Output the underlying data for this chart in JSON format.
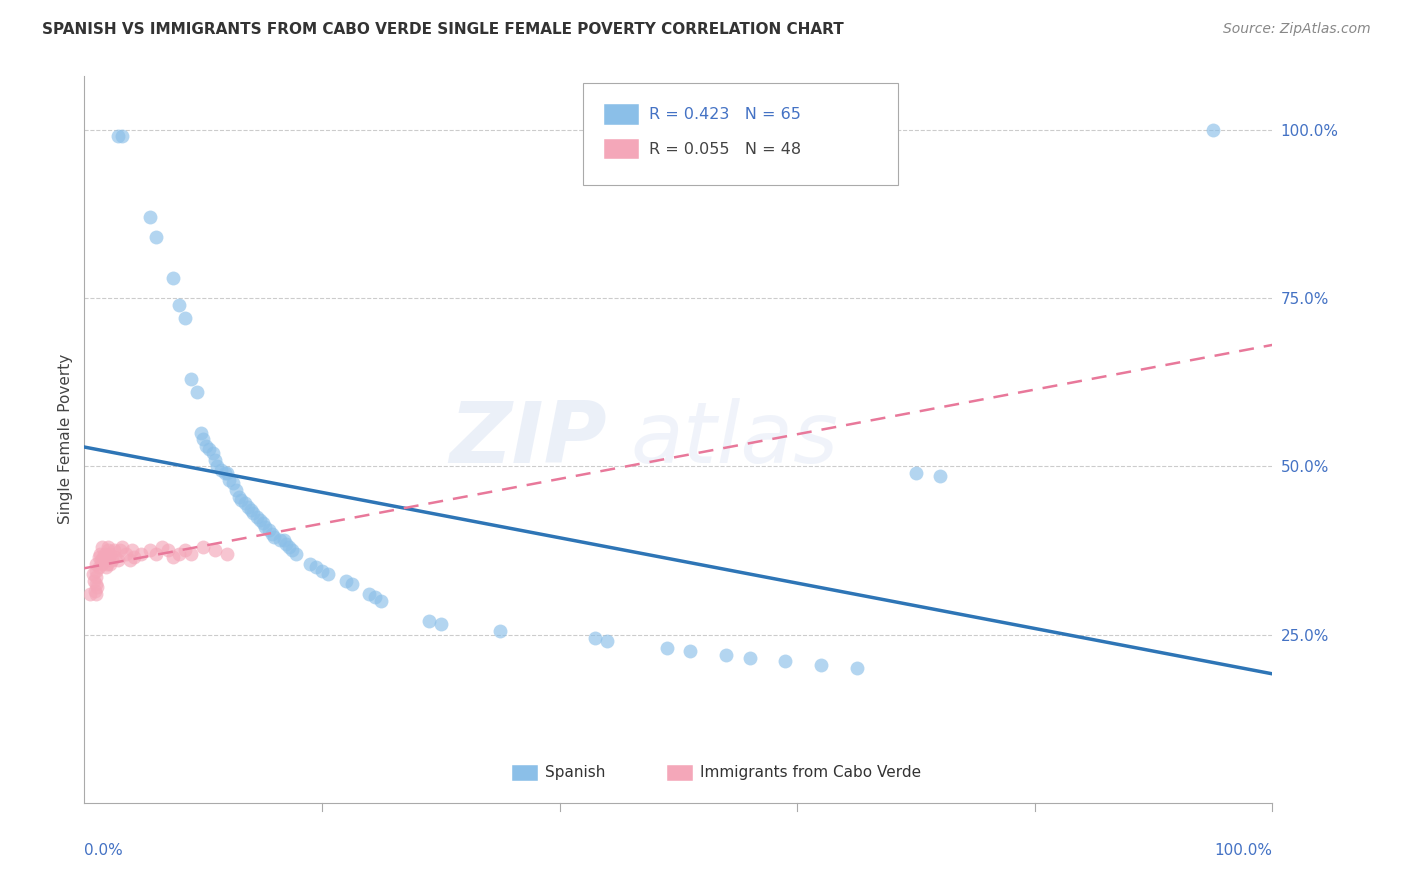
{
  "title": "SPANISH VS IMMIGRANTS FROM CABO VERDE SINGLE FEMALE POVERTY CORRELATION CHART",
  "source": "Source: ZipAtlas.com",
  "ylabel": "Single Female Poverty",
  "r_spanish": 0.423,
  "n_spanish": 65,
  "r_cabo": 0.055,
  "n_cabo": 48,
  "legend_label1": "Spanish",
  "legend_label2": "Immigrants from Cabo Verde",
  "watermark_zip": "ZIP",
  "watermark_atlas": "atlas",
  "blue_color": "#8BBFE8",
  "pink_color": "#F4A7B9",
  "blue_line_color": "#2E75B6",
  "pink_line_color": "#E8789A",
  "blue_line_solid": true,
  "pink_line_dashed": true,
  "spanish_x": [
    0.028,
    0.032,
    0.055,
    0.06,
    0.075,
    0.08,
    0.085,
    0.09,
    0.095,
    0.098,
    0.1,
    0.102,
    0.105,
    0.108,
    0.11,
    0.112,
    0.115,
    0.118,
    0.12,
    0.122,
    0.125,
    0.128,
    0.13,
    0.132,
    0.135,
    0.138,
    0.14,
    0.142,
    0.145,
    0.148,
    0.15,
    0.152,
    0.155,
    0.158,
    0.16,
    0.165,
    0.168,
    0.17,
    0.172,
    0.175,
    0.178,
    0.19,
    0.195,
    0.2,
    0.205,
    0.22,
    0.225,
    0.24,
    0.245,
    0.25,
    0.29,
    0.3,
    0.35,
    0.43,
    0.44,
    0.49,
    0.51,
    0.54,
    0.56,
    0.59,
    0.62,
    0.65,
    0.7,
    0.72,
    0.95
  ],
  "spanish_y": [
    0.99,
    0.99,
    0.87,
    0.84,
    0.78,
    0.74,
    0.72,
    0.63,
    0.61,
    0.55,
    0.54,
    0.53,
    0.525,
    0.52,
    0.51,
    0.5,
    0.495,
    0.49,
    0.49,
    0.48,
    0.475,
    0.465,
    0.455,
    0.45,
    0.445,
    0.44,
    0.435,
    0.43,
    0.425,
    0.42,
    0.415,
    0.41,
    0.405,
    0.4,
    0.395,
    0.39,
    0.39,
    0.385,
    0.38,
    0.375,
    0.37,
    0.355,
    0.35,
    0.345,
    0.34,
    0.33,
    0.325,
    0.31,
    0.305,
    0.3,
    0.27,
    0.265,
    0.255,
    0.245,
    0.24,
    0.23,
    0.225,
    0.22,
    0.215,
    0.21,
    0.205,
    0.2,
    0.49,
    0.485,
    1.0
  ],
  "cabo_x": [
    0.005,
    0.007,
    0.008,
    0.009,
    0.01,
    0.01,
    0.01,
    0.01,
    0.01,
    0.011,
    0.012,
    0.012,
    0.013,
    0.014,
    0.015,
    0.015,
    0.016,
    0.017,
    0.018,
    0.018,
    0.019,
    0.02,
    0.02,
    0.021,
    0.022,
    0.022,
    0.023,
    0.025,
    0.026,
    0.028,
    0.03,
    0.032,
    0.035,
    0.038,
    0.04,
    0.042,
    0.048,
    0.055,
    0.06,
    0.065,
    0.07,
    0.075,
    0.08,
    0.085,
    0.09,
    0.1,
    0.11,
    0.12
  ],
  "cabo_y": [
    0.31,
    0.34,
    0.33,
    0.315,
    0.355,
    0.345,
    0.335,
    0.325,
    0.31,
    0.32,
    0.365,
    0.35,
    0.37,
    0.36,
    0.355,
    0.38,
    0.365,
    0.37,
    0.36,
    0.35,
    0.355,
    0.375,
    0.38,
    0.365,
    0.37,
    0.355,
    0.36,
    0.375,
    0.365,
    0.36,
    0.375,
    0.38,
    0.37,
    0.36,
    0.375,
    0.365,
    0.37,
    0.375,
    0.37,
    0.38,
    0.375,
    0.365,
    0.37,
    0.375,
    0.37,
    0.38,
    0.375,
    0.37
  ],
  "xlim": [
    0.0,
    1.0
  ],
  "ylim": [
    0.0,
    1.08
  ],
  "yticks": [
    0.25,
    0.5,
    0.75,
    1.0
  ],
  "ytick_labels": [
    "25.0%",
    "50.0%",
    "75.0%",
    "100.0%"
  ],
  "grid_color": "#CCCCCC",
  "spine_color": "#AAAAAA"
}
